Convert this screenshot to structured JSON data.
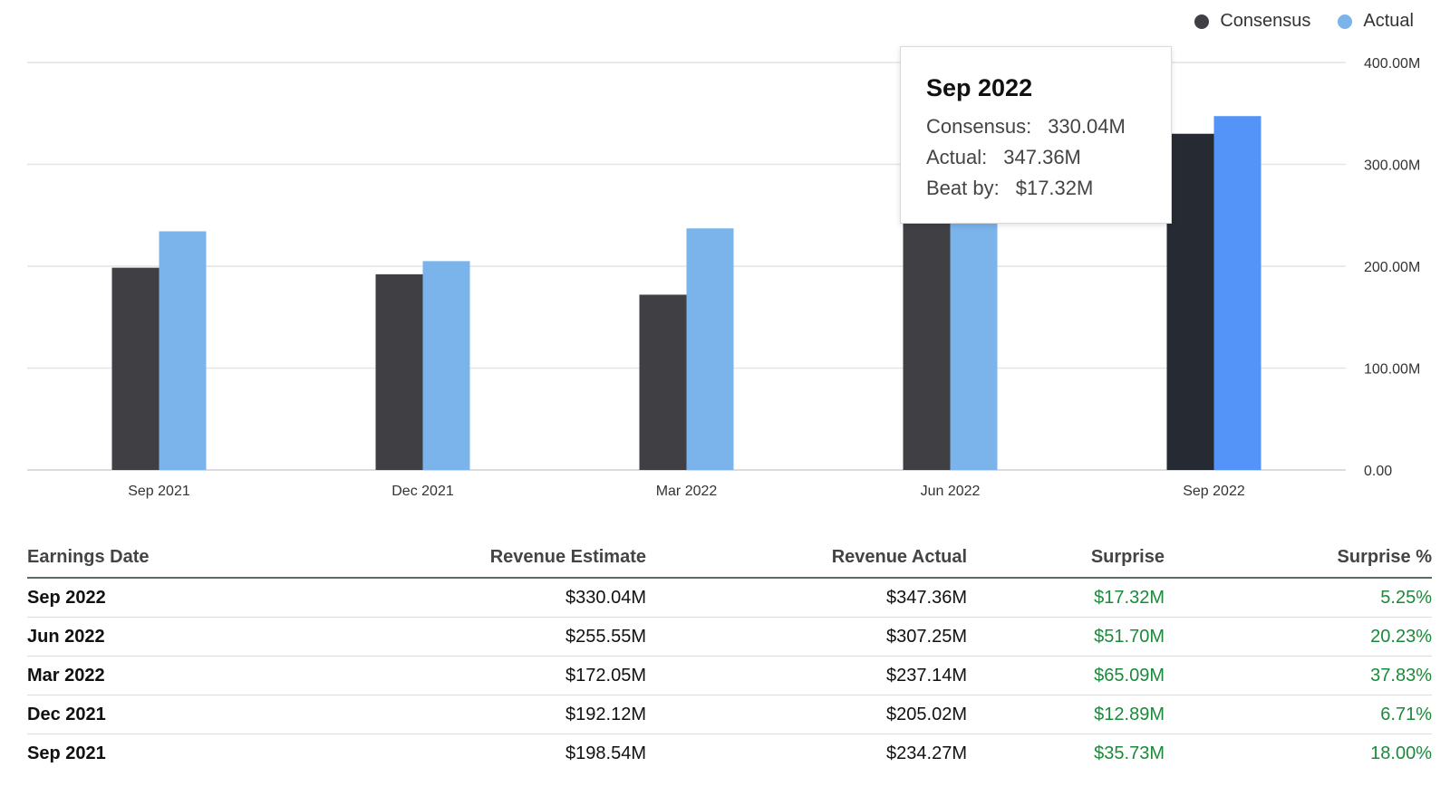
{
  "legend": [
    {
      "label": "Consensus",
      "color": "#3f3f44"
    },
    {
      "label": "Actual",
      "color": "#7ab4eb"
    }
  ],
  "tooltip": {
    "title": "Sep 2022",
    "consensus_label": "Consensus:",
    "consensus_value": "330.04M",
    "actual_label": "Actual:",
    "actual_value": "347.36M",
    "beat_label": "Beat by:",
    "beat_value": "$17.32M"
  },
  "chart_data": {
    "type": "bar",
    "categories": [
      "Sep 2021",
      "Dec 2021",
      "Mar 2022",
      "Jun 2022",
      "Sep 2022"
    ],
    "series": [
      {
        "name": "Consensus",
        "values": [
          198.54,
          192.12,
          172.05,
          255.55,
          330.04
        ],
        "color": "#3f3f44",
        "highlight_color": "#252a33"
      },
      {
        "name": "Actual",
        "values": [
          234.27,
          205.02,
          237.14,
          307.25,
          347.36
        ],
        "color": "#7ab4eb",
        "highlight_color": "#5493f8"
      }
    ],
    "highlighted_category": "Sep 2022",
    "ylim": [
      0,
      400
    ],
    "yticks": [
      "0.00",
      "100.00M",
      "200.00M",
      "300.00M",
      "400.00M"
    ],
    "axis_position": "right",
    "grid": true,
    "legend_position": "top-right"
  },
  "table": {
    "headers": [
      "Earnings Date",
      "Revenue Estimate",
      "Revenue Actual",
      "Surprise",
      "Surprise %"
    ],
    "rows": [
      [
        "Sep 2022",
        "$330.04M",
        "$347.36M",
        "$17.32M",
        "5.25%"
      ],
      [
        "Jun 2022",
        "$255.55M",
        "$307.25M",
        "$51.70M",
        "20.23%"
      ],
      [
        "Mar 2022",
        "$172.05M",
        "$237.14M",
        "$65.09M",
        "37.83%"
      ],
      [
        "Dec 2021",
        "$192.12M",
        "$205.02M",
        "$12.89M",
        "6.71%"
      ],
      [
        "Sep 2021",
        "$198.54M",
        "$234.27M",
        "$35.73M",
        "18.00%"
      ]
    ]
  }
}
